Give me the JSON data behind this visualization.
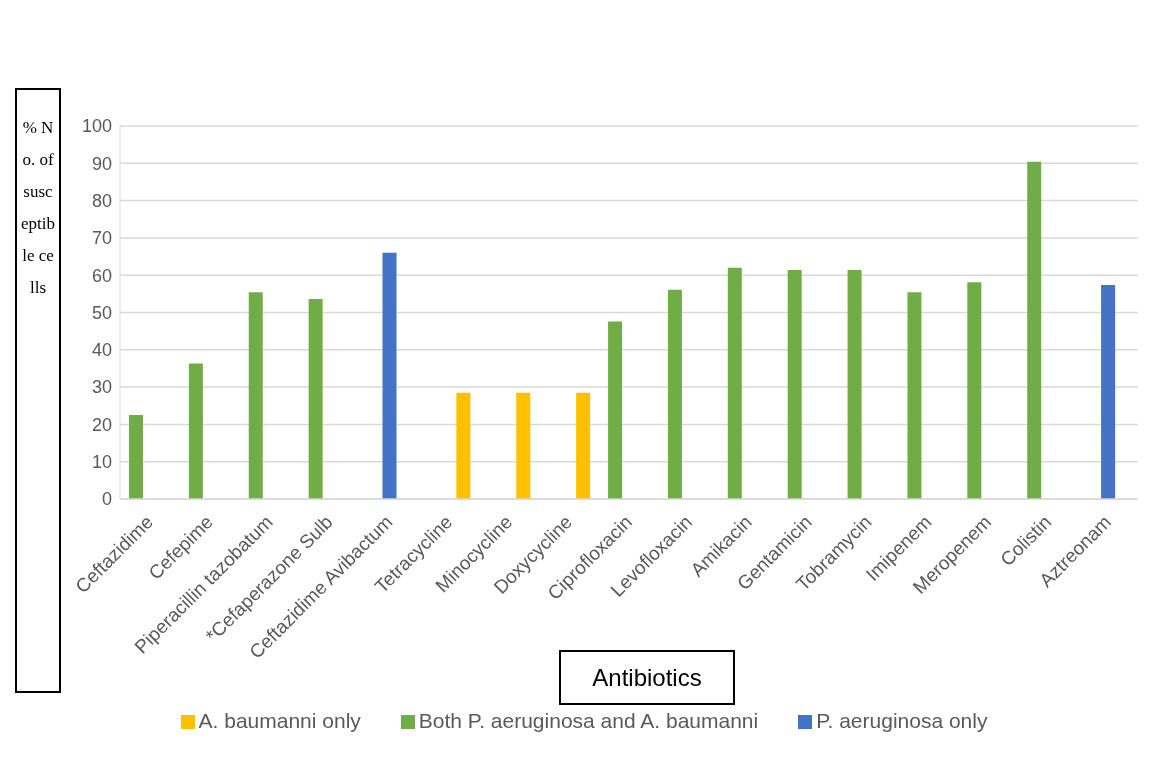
{
  "chart_data": {
    "type": "bar",
    "xlabel": "Antibiotics",
    "ylabel": "% No. of susceptible cells",
    "categories": [
      "Ceftazidime",
      "Cefepime",
      "Piperacillin tazobatum",
      "*Cefaperazone Sulb",
      "Ceftazidime Avibactum",
      "Tetracycline",
      "Minocycline",
      "Doxycycline",
      "Ciprofloxacin",
      "Levofloxacin",
      "Amikacin",
      "Gentamicin",
      "Tobramycin",
      "Imipenem",
      "Meropenem",
      "Colistin",
      "Aztreonam"
    ],
    "series": [
      {
        "name": "Both P. aeruginosa and A. baumanni",
        "color": "#70ad47",
        "values": [
          22.5,
          36.3,
          55.4,
          53.6,
          null,
          null,
          null,
          null,
          47.6,
          56.1,
          62,
          61.4,
          61.4,
          55.4,
          58.1,
          90.4,
          null
        ]
      },
      {
        "name": "P. aeruginosa only",
        "color": "#4472c4",
        "values": [
          null,
          null,
          null,
          null,
          66,
          null,
          null,
          null,
          null,
          null,
          null,
          null,
          null,
          null,
          null,
          null,
          57.4
        ]
      },
      {
        "name": "A. baumanni only",
        "color": "#ffc000",
        "values": [
          null,
          null,
          null,
          null,
          null,
          28.5,
          28.5,
          28.5,
          null,
          null,
          null,
          null,
          null,
          null,
          null,
          null,
          null
        ]
      }
    ],
    "ylim": [
      0,
      100
    ],
    "yticks": [
      0,
      10,
      20,
      30,
      40,
      50,
      60,
      70,
      80,
      90,
      100
    ],
    "grid": "y",
    "legend": "bottom"
  }
}
